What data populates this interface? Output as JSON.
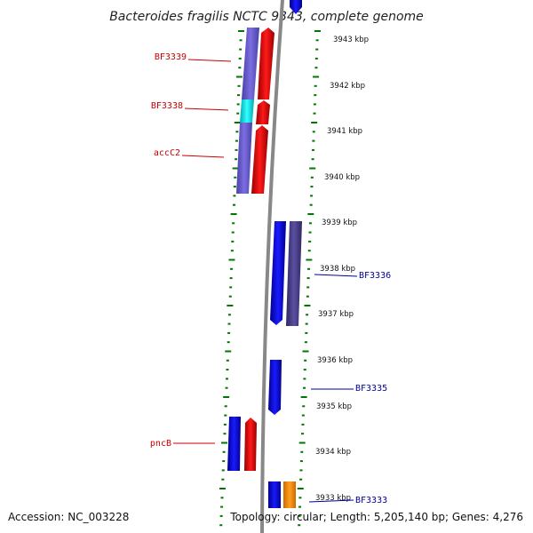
{
  "title": "Bacteroides fragilis NCTC 9343, complete genome",
  "footer": {
    "accession": "Accession: NC_003228",
    "topology": "Topology: circular; Length: 5,205,140 bp; Genes: 4,276"
  },
  "ruler": {
    "labels": [
      "3943 kbp",
      "3942 kbp",
      "3941 kbp",
      "3940 kbp",
      "3939 kbp",
      "3938 kbp",
      "3937 kbp",
      "3936 kbp",
      "3935 kbp",
      "3934 kbp",
      "3933 kbp"
    ]
  },
  "gene_labels_left": [
    "BF3339",
    "BF3338",
    "accC2",
    "pncB"
  ],
  "gene_labels_right": [
    "BF3336",
    "BF3335",
    "BF3333"
  ],
  "colors": {
    "forward": "#1a1aff",
    "reverse": "#ee0000",
    "cds_slate": "#6a5acd",
    "cyan": "#00e5ee",
    "dark_slate": "#483d8b",
    "orange": "#ff8c00",
    "backbone": "#888888",
    "tick": "#007700",
    "label_left": "#cc0000",
    "label_right": "#000099"
  }
}
